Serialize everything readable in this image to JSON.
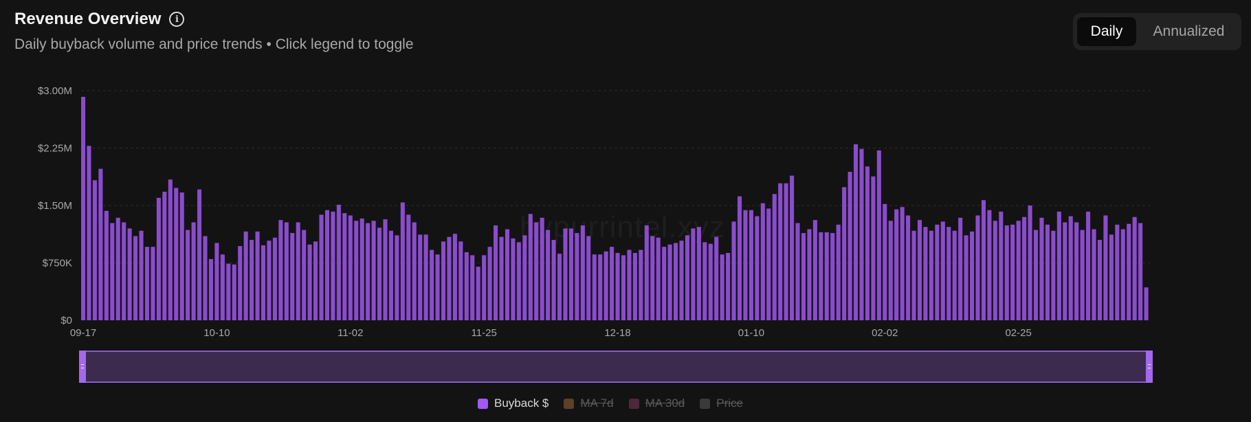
{
  "header": {
    "title": "Revenue Overview",
    "subtitle": "Daily buyback volume and price trends • Click legend to toggle"
  },
  "toggle": {
    "daily": "Daily",
    "annualized": "Annualized"
  },
  "watermark": "hypurrintel.xyz",
  "legend": [
    {
      "label": "Buyback $",
      "color": "#a259f0",
      "active": true
    },
    {
      "label": "MA 7d",
      "color": "#5a4127",
      "active": false
    },
    {
      "label": "MA 30d",
      "color": "#4e2838",
      "active": false
    },
    {
      "label": "Price",
      "color": "#3a3a3a",
      "active": false
    }
  ],
  "chart_data": {
    "type": "bar",
    "title": "Revenue Overview",
    "x_start": "09-17",
    "x_ticks": [
      "09-17",
      "10-10",
      "11-02",
      "11-25",
      "12-18",
      "01-10",
      "02-02",
      "02-25"
    ],
    "y_ticks": [
      "$0",
      "$750K",
      "$1.50M",
      "$2.25M",
      "$3.00M"
    ],
    "ylim": [
      0,
      3000000
    ],
    "grid": true,
    "bar_color": "#8a4ccc",
    "series": [
      {
        "name": "Buyback $",
        "unit": "USD",
        "values": [
          2920000,
          2280000,
          1830000,
          1980000,
          1430000,
          1270000,
          1340000,
          1280000,
          1200000,
          1100000,
          1170000,
          960000,
          960000,
          1600000,
          1680000,
          1840000,
          1730000,
          1670000,
          1180000,
          1280000,
          1710000,
          1100000,
          800000,
          1010000,
          860000,
          740000,
          730000,
          970000,
          1160000,
          1050000,
          1160000,
          980000,
          1040000,
          1080000,
          1310000,
          1280000,
          1140000,
          1280000,
          1180000,
          990000,
          1030000,
          1380000,
          1440000,
          1420000,
          1510000,
          1400000,
          1370000,
          1300000,
          1330000,
          1270000,
          1300000,
          1210000,
          1320000,
          1170000,
          1110000,
          1540000,
          1380000,
          1280000,
          1120000,
          1120000,
          920000,
          860000,
          1030000,
          1090000,
          1130000,
          1030000,
          890000,
          850000,
          700000,
          850000,
          960000,
          1240000,
          1090000,
          1190000,
          1070000,
          1020000,
          1110000,
          1390000,
          1280000,
          1340000,
          1180000,
          1050000,
          870000,
          1200000,
          1200000,
          1140000,
          1240000,
          1100000,
          860000,
          860000,
          900000,
          960000,
          880000,
          850000,
          920000,
          880000,
          920000,
          1240000,
          1100000,
          1080000,
          960000,
          990000,
          1010000,
          1040000,
          1110000,
          1200000,
          1220000,
          1020000,
          1000000,
          1090000,
          860000,
          880000,
          1290000,
          1620000,
          1440000,
          1440000,
          1360000,
          1530000,
          1460000,
          1650000,
          1790000,
          1790000,
          1890000,
          1270000,
          1140000,
          1190000,
          1310000,
          1150000,
          1150000,
          1140000,
          1250000,
          1740000,
          1940000,
          2300000,
          2240000,
          2010000,
          1880000,
          2220000,
          1520000,
          1300000,
          1450000,
          1480000,
          1370000,
          1170000,
          1310000,
          1220000,
          1170000,
          1250000,
          1290000,
          1220000,
          1170000,
          1340000,
          1110000,
          1160000,
          1370000,
          1570000,
          1440000,
          1300000,
          1420000,
          1240000,
          1250000,
          1300000,
          1350000,
          1500000,
          1180000,
          1340000,
          1250000,
          1170000,
          1420000,
          1280000,
          1360000,
          1280000,
          1180000,
          1420000,
          1190000,
          1050000,
          1370000,
          1120000,
          1250000,
          1190000,
          1260000,
          1350000,
          1270000,
          430000
        ]
      }
    ]
  }
}
